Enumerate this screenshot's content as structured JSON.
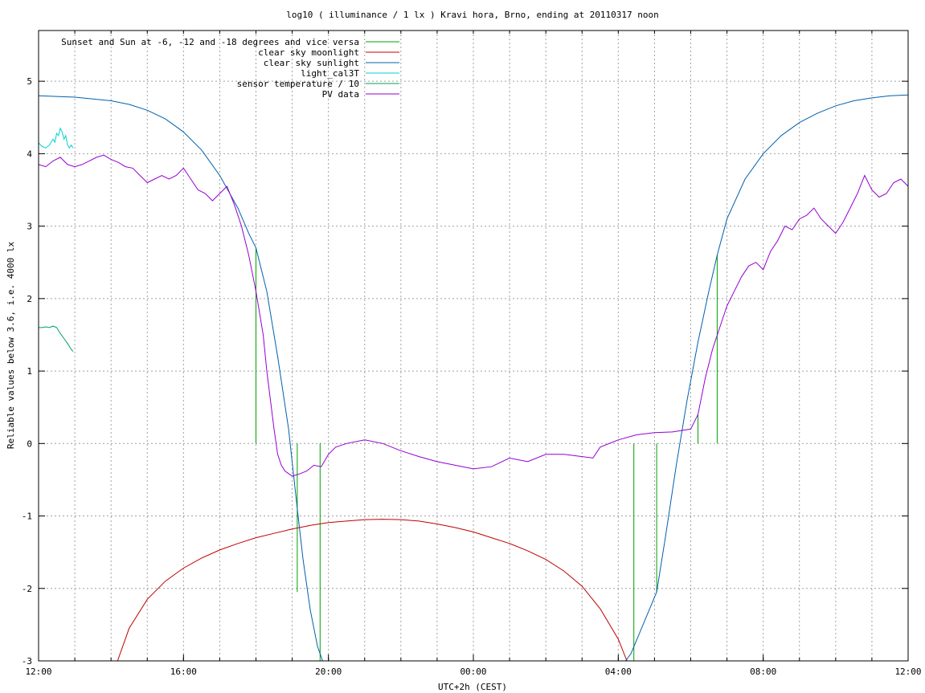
{
  "chart_data": {
    "type": "line",
    "title": "log10 ( illuminance / 1 lx ) Kravi hora, Brno, ending at 20110317 noon",
    "xlabel": "UTC+2h (CEST)",
    "ylabel": "Reliable values below 3.6, i.e. 4000 lx",
    "xlim": [
      0,
      24
    ],
    "ylim": [
      -3,
      5.7
    ],
    "x_unit": "hours since 12:00 (UTC+2h)",
    "x_ticks": [
      {
        "x": 0,
        "label": "12:00"
      },
      {
        "x": 4,
        "label": "16:00"
      },
      {
        "x": 8,
        "label": "20:00"
      },
      {
        "x": 12,
        "label": "00:00"
      },
      {
        "x": 16,
        "label": "04:00"
      },
      {
        "x": 20,
        "label": "08:00"
      },
      {
        "x": 24,
        "label": "12:00"
      }
    ],
    "y_ticks": [
      -3,
      -2,
      -1,
      0,
      1,
      2,
      3,
      4,
      5
    ],
    "grid": true,
    "legend_position": "top-left",
    "series": [
      {
        "name": "Sunset and Sun at -6, -12 and -18 degrees and vice versa",
        "color": "#00a000",
        "kind": "vertical-markers",
        "markers": [
          {
            "x": 6.0,
            "y_top": 2.7
          },
          {
            "x": 7.14,
            "y_top": 0.0
          },
          {
            "x": 7.77,
            "y_top": 0.0
          },
          {
            "x": 16.43,
            "y_top": 0.0
          },
          {
            "x": 17.06,
            "y_top": 0.0
          },
          {
            "x": 18.2,
            "y_top": 0.4
          },
          {
            "x": 18.73,
            "y_top": 2.6
          }
        ]
      },
      {
        "name": "clear sky moonlight",
        "color": "#c00000",
        "points": [
          [
            2.18,
            -3.0
          ],
          [
            2.5,
            -2.55
          ],
          [
            3.0,
            -2.15
          ],
          [
            3.5,
            -1.9
          ],
          [
            4.0,
            -1.72
          ],
          [
            4.5,
            -1.58
          ],
          [
            5.0,
            -1.47
          ],
          [
            5.5,
            -1.38
          ],
          [
            6.0,
            -1.3
          ],
          [
            6.5,
            -1.24
          ],
          [
            7.0,
            -1.18
          ],
          [
            7.5,
            -1.13
          ],
          [
            8.0,
            -1.09
          ],
          [
            8.5,
            -1.07
          ],
          [
            9.0,
            -1.05
          ],
          [
            9.5,
            -1.045
          ],
          [
            10.0,
            -1.05
          ],
          [
            10.5,
            -1.07
          ],
          [
            11.0,
            -1.11
          ],
          [
            11.5,
            -1.16
          ],
          [
            12.0,
            -1.22
          ],
          [
            12.5,
            -1.3
          ],
          [
            13.0,
            -1.38
          ],
          [
            13.5,
            -1.48
          ],
          [
            14.0,
            -1.6
          ],
          [
            14.5,
            -1.76
          ],
          [
            15.0,
            -1.97
          ],
          [
            15.5,
            -2.28
          ],
          [
            16.0,
            -2.7
          ],
          [
            16.2,
            -2.95
          ],
          [
            16.24,
            -3.0
          ]
        ]
      },
      {
        "name": "clear sky sunlight",
        "color": "#0060ad",
        "points": [
          [
            0.0,
            4.8
          ],
          [
            1.0,
            4.78
          ],
          [
            2.0,
            4.73
          ],
          [
            2.5,
            4.68
          ],
          [
            3.0,
            4.6
          ],
          [
            3.5,
            4.48
          ],
          [
            4.0,
            4.3
          ],
          [
            4.5,
            4.05
          ],
          [
            5.0,
            3.7
          ],
          [
            5.5,
            3.25
          ],
          [
            5.8,
            2.9
          ],
          [
            6.0,
            2.7
          ],
          [
            6.3,
            2.1
          ],
          [
            6.6,
            1.2
          ],
          [
            6.9,
            0.2
          ],
          [
            7.14,
            -0.9
          ],
          [
            7.3,
            -1.6
          ],
          [
            7.5,
            -2.3
          ],
          [
            7.7,
            -2.8
          ],
          [
            7.84,
            -3.0
          ],
          [
            16.2,
            -3.0
          ],
          [
            16.35,
            -2.9
          ],
          [
            16.6,
            -2.6
          ],
          [
            16.85,
            -2.3
          ],
          [
            17.06,
            -2.05
          ],
          [
            17.3,
            -1.3
          ],
          [
            17.6,
            -0.3
          ],
          [
            17.9,
            0.6
          ],
          [
            18.2,
            1.4
          ],
          [
            18.5,
            2.1
          ],
          [
            18.73,
            2.6
          ],
          [
            19.0,
            3.1
          ],
          [
            19.5,
            3.65
          ],
          [
            20.0,
            4.0
          ],
          [
            20.5,
            4.25
          ],
          [
            21.0,
            4.43
          ],
          [
            21.5,
            4.56
          ],
          [
            22.0,
            4.66
          ],
          [
            22.5,
            4.73
          ],
          [
            23.0,
            4.77
          ],
          [
            23.5,
            4.8
          ],
          [
            24.0,
            4.81
          ]
        ]
      },
      {
        "name": "light_cal3T",
        "color": "#00d0d0",
        "points": [
          [
            0.0,
            4.15
          ],
          [
            0.1,
            4.1
          ],
          [
            0.2,
            4.08
          ],
          [
            0.3,
            4.12
          ],
          [
            0.4,
            4.2
          ],
          [
            0.45,
            4.16
          ],
          [
            0.5,
            4.28
          ],
          [
            0.55,
            4.25
          ],
          [
            0.6,
            4.35
          ],
          [
            0.65,
            4.3
          ],
          [
            0.7,
            4.2
          ],
          [
            0.75,
            4.25
          ],
          [
            0.8,
            4.12
          ],
          [
            0.85,
            4.08
          ],
          [
            0.9,
            4.12
          ],
          [
            0.95,
            4.08
          ]
        ]
      },
      {
        "name": "sensor temperature / 10",
        "color": "#00a060",
        "points": [
          [
            0.0,
            1.6
          ],
          [
            0.1,
            1.6
          ],
          [
            0.2,
            1.61
          ],
          [
            0.3,
            1.6
          ],
          [
            0.4,
            1.62
          ],
          [
            0.5,
            1.6
          ],
          [
            0.6,
            1.52
          ],
          [
            0.7,
            1.45
          ],
          [
            0.8,
            1.38
          ],
          [
            0.9,
            1.3
          ],
          [
            0.95,
            1.27
          ]
        ]
      },
      {
        "name": "PV data",
        "color": "#9400d3",
        "points": [
          [
            0.0,
            3.85
          ],
          [
            0.2,
            3.82
          ],
          [
            0.4,
            3.9
          ],
          [
            0.6,
            3.95
          ],
          [
            0.8,
            3.85
          ],
          [
            1.0,
            3.82
          ],
          [
            1.2,
            3.85
          ],
          [
            1.4,
            3.9
          ],
          [
            1.6,
            3.95
          ],
          [
            1.8,
            3.98
          ],
          [
            2.0,
            3.92
          ],
          [
            2.2,
            3.88
          ],
          [
            2.4,
            3.82
          ],
          [
            2.6,
            3.8
          ],
          [
            2.8,
            3.7
          ],
          [
            3.0,
            3.6
          ],
          [
            3.2,
            3.65
          ],
          [
            3.4,
            3.7
          ],
          [
            3.6,
            3.65
          ],
          [
            3.8,
            3.7
          ],
          [
            4.0,
            3.8
          ],
          [
            4.2,
            3.65
          ],
          [
            4.4,
            3.5
          ],
          [
            4.6,
            3.45
          ],
          [
            4.8,
            3.35
          ],
          [
            5.0,
            3.45
          ],
          [
            5.2,
            3.55
          ],
          [
            5.4,
            3.3
          ],
          [
            5.6,
            3.0
          ],
          [
            5.8,
            2.6
          ],
          [
            6.0,
            2.1
          ],
          [
            6.2,
            1.5
          ],
          [
            6.3,
            1.0
          ],
          [
            6.4,
            0.6
          ],
          [
            6.5,
            0.2
          ],
          [
            6.6,
            -0.15
          ],
          [
            6.7,
            -0.3
          ],
          [
            6.8,
            -0.38
          ],
          [
            7.0,
            -0.45
          ],
          [
            7.2,
            -0.42
          ],
          [
            7.4,
            -0.38
          ],
          [
            7.6,
            -0.3
          ],
          [
            7.8,
            -0.32
          ],
          [
            8.0,
            -0.15
          ],
          [
            8.2,
            -0.05
          ],
          [
            8.5,
            0.0
          ],
          [
            9.0,
            0.05
          ],
          [
            9.5,
            0.0
          ],
          [
            10.0,
            -0.1
          ],
          [
            10.5,
            -0.18
          ],
          [
            11.0,
            -0.25
          ],
          [
            11.5,
            -0.3
          ],
          [
            12.0,
            -0.35
          ],
          [
            12.5,
            -0.32
          ],
          [
            13.0,
            -0.2
          ],
          [
            13.5,
            -0.25
          ],
          [
            14.0,
            -0.15
          ],
          [
            14.5,
            -0.15
          ],
          [
            15.0,
            -0.18
          ],
          [
            15.3,
            -0.2
          ],
          [
            15.5,
            -0.05
          ],
          [
            16.0,
            0.05
          ],
          [
            16.5,
            0.12
          ],
          [
            17.0,
            0.15
          ],
          [
            17.5,
            0.16
          ],
          [
            18.0,
            0.2
          ],
          [
            18.2,
            0.4
          ],
          [
            18.4,
            0.9
          ],
          [
            18.6,
            1.3
          ],
          [
            18.8,
            1.6
          ],
          [
            19.0,
            1.9
          ],
          [
            19.2,
            2.1
          ],
          [
            19.4,
            2.3
          ],
          [
            19.6,
            2.45
          ],
          [
            19.8,
            2.5
          ],
          [
            20.0,
            2.4
          ],
          [
            20.2,
            2.65
          ],
          [
            20.4,
            2.8
          ],
          [
            20.6,
            3.0
          ],
          [
            20.8,
            2.95
          ],
          [
            21.0,
            3.1
          ],
          [
            21.2,
            3.15
          ],
          [
            21.4,
            3.25
          ],
          [
            21.6,
            3.1
          ],
          [
            21.8,
            3.0
          ],
          [
            22.0,
            2.9
          ],
          [
            22.2,
            3.05
          ],
          [
            22.4,
            3.25
          ],
          [
            22.6,
            3.45
          ],
          [
            22.8,
            3.7
          ],
          [
            23.0,
            3.5
          ],
          [
            23.2,
            3.4
          ],
          [
            23.4,
            3.45
          ],
          [
            23.6,
            3.6
          ],
          [
            23.8,
            3.65
          ],
          [
            24.0,
            3.55
          ]
        ]
      }
    ]
  }
}
